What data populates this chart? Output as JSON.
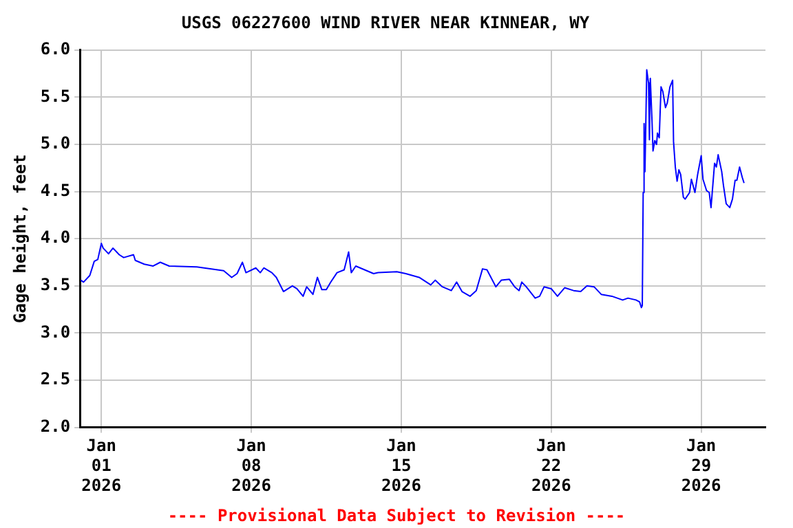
{
  "chart_data": {
    "type": "line",
    "title": "USGS 06227600 WIND RIVER NEAR KINNEAR, WY",
    "ylabel": "Gage height, feet",
    "annotations": [
      "---- Provisional Data Subject to Revision ----"
    ],
    "x": [
      "2025-12-31T01:00",
      "2025-12-31T04:00",
      "2025-12-31T11:00",
      "2025-12-31T16:00",
      "2025-12-31T20:00",
      "2026-01-01T00:00",
      "2026-01-01T02:00",
      "2026-01-01T08:00",
      "2026-01-01T13:00",
      "2026-01-01T20:00",
      "2026-01-02T01:00",
      "2026-01-02T12:00",
      "2026-01-02T14:00",
      "2026-01-03T00:00",
      "2026-01-03T10:00",
      "2026-01-03T18:00",
      "2026-01-04T04:00",
      "2026-01-05T11:00",
      "2026-01-06T02:00",
      "2026-01-06T17:00",
      "2026-01-07T02:00",
      "2026-01-07T08:00",
      "2026-01-07T14:00",
      "2026-01-07T18:00",
      "2026-01-08T05:00",
      "2026-01-08T10:00",
      "2026-01-08T14:00",
      "2026-01-08T23:00",
      "2026-01-09T04:00",
      "2026-01-09T12:00",
      "2026-01-09T22:00",
      "2026-01-10T03:00",
      "2026-01-10T10:00",
      "2026-01-10T14:00",
      "2026-01-10T21:00",
      "2026-01-11T02:00",
      "2026-01-11T07:00",
      "2026-01-11T12:00",
      "2026-01-11T17:00",
      "2026-01-12T00:00",
      "2026-01-12T08:00",
      "2026-01-12T13:00",
      "2026-01-12T16:00",
      "2026-01-12T21:00",
      "2026-01-13T07:00",
      "2026-01-13T17:00",
      "2026-01-13T22:00",
      "2026-01-14T19:00",
      "2026-01-15T05:00",
      "2026-01-15T20:00",
      "2026-01-16T09:00",
      "2026-01-16T14:00",
      "2026-01-16T22:00",
      "2026-01-17T08:00",
      "2026-01-17T14:00",
      "2026-01-17T20:00",
      "2026-01-18T05:00",
      "2026-01-18T12:00",
      "2026-01-18T19:00",
      "2026-01-19T00:00",
      "2026-01-19T10:00",
      "2026-01-19T16:00",
      "2026-01-20T01:00",
      "2026-01-20T07:00",
      "2026-01-20T12:00",
      "2026-01-20T15:00",
      "2026-01-20T20:00",
      "2026-01-21T06:00",
      "2026-01-21T11:00",
      "2026-01-21T16:00",
      "2026-01-22T00:00",
      "2026-01-22T07:00",
      "2026-01-22T15:00",
      "2026-01-23T01:00",
      "2026-01-23T09:00",
      "2026-01-23T16:00",
      "2026-01-24T00:00",
      "2026-01-24T08:00",
      "2026-01-24T20:00",
      "2026-01-25T08:00",
      "2026-01-25T14:00",
      "2026-01-25T23:00",
      "2026-01-26T03:00",
      "2026-01-26T05:00",
      "2026-01-26T06:00",
      "2026-01-26T07:00",
      "2026-01-26T08:00",
      "2026-01-26T09:00",
      "2026-01-26T11:00",
      "2026-01-26T13:00",
      "2026-01-26T14:00",
      "2026-01-26T15:00",
      "2026-01-26T17:00",
      "2026-01-26T18:00",
      "2026-01-26T20:00",
      "2026-01-26T22:00",
      "2026-01-26T23:00",
      "2026-01-27T01:00",
      "2026-01-27T03:00",
      "2026-01-27T05:00",
      "2026-01-27T08:00",
      "2026-01-27T10:00",
      "2026-01-27T13:00",
      "2026-01-27T16:00",
      "2026-01-27T17:00",
      "2026-01-27T19:00",
      "2026-01-27T21:00",
      "2026-01-27T23:00",
      "2026-01-28T01:00",
      "2026-01-28T04:00",
      "2026-01-28T06:00",
      "2026-01-28T11:00",
      "2026-01-28T13:00",
      "2026-01-28T17:00",
      "2026-01-28T20:00",
      "2026-01-29T00:00",
      "2026-01-29T02:00",
      "2026-01-29T06:00",
      "2026-01-29T09:00",
      "2026-01-29T11:00",
      "2026-01-29T15:00",
      "2026-01-29T17:00",
      "2026-01-29T19:00",
      "2026-01-29T23:00",
      "2026-01-30T01:00",
      "2026-01-30T04:00",
      "2026-01-30T08:00",
      "2026-01-30T11:00",
      "2026-01-30T14:00",
      "2026-01-30T16:00",
      "2026-01-30T19:00",
      "2026-01-30T22:00",
      "2026-01-31T00:00"
    ],
    "series": [
      {
        "color": "#0000ff",
        "values": [
          3.56,
          3.54,
          3.61,
          3.76,
          3.78,
          3.95,
          3.9,
          3.84,
          3.9,
          3.83,
          3.8,
          3.83,
          3.77,
          3.73,
          3.71,
          3.75,
          3.71,
          3.7,
          3.68,
          3.66,
          3.59,
          3.63,
          3.75,
          3.64,
          3.69,
          3.64,
          3.69,
          3.64,
          3.59,
          3.44,
          3.5,
          3.47,
          3.39,
          3.49,
          3.41,
          3.59,
          3.46,
          3.46,
          3.54,
          3.64,
          3.67,
          3.86,
          3.64,
          3.71,
          3.67,
          3.63,
          3.64,
          3.65,
          3.63,
          3.59,
          3.51,
          3.56,
          3.49,
          3.45,
          3.54,
          3.44,
          3.39,
          3.45,
          3.68,
          3.67,
          3.49,
          3.56,
          3.57,
          3.49,
          3.45,
          3.54,
          3.49,
          3.37,
          3.39,
          3.49,
          3.47,
          3.39,
          3.48,
          3.45,
          3.44,
          3.5,
          3.49,
          3.41,
          3.39,
          3.35,
          3.37,
          3.35,
          3.33,
          3.27,
          3.29,
          4.49,
          5.22,
          4.71,
          5.79,
          5.65,
          5.05,
          5.7,
          5.22,
          4.93,
          5.04,
          5.0,
          5.12,
          5.07,
          5.61,
          5.56,
          5.39,
          5.44,
          5.61,
          5.68,
          5.03,
          4.76,
          4.61,
          4.73,
          4.68,
          4.44,
          4.42,
          4.49,
          4.63,
          4.49,
          4.68,
          4.88,
          4.63,
          4.51,
          4.49,
          4.33,
          4.8,
          4.76,
          4.89,
          4.71,
          4.56,
          4.37,
          4.33,
          4.42,
          4.62,
          4.62,
          4.76,
          4.65,
          4.59
        ]
      }
    ],
    "xlim": [
      "2025-12-31",
      "2026-02-01"
    ],
    "xticks": [
      {
        "value": "2026-01-01",
        "label": "Jan\n01\n2026"
      },
      {
        "value": "2026-01-08",
        "label": "Jan\n08\n2026"
      },
      {
        "value": "2026-01-15",
        "label": "Jan\n15\n2026"
      },
      {
        "value": "2026-01-22",
        "label": "Jan\n22\n2026"
      },
      {
        "value": "2026-01-29",
        "label": "Jan\n29\n2026"
      }
    ],
    "ylim": [
      2,
      6
    ],
    "yticks": [
      {
        "value": 2,
        "label": "2.0"
      },
      {
        "value": 2.5,
        "label": "2.5"
      },
      {
        "value": 3,
        "label": "3.0"
      },
      {
        "value": 3.5,
        "label": "3.5"
      },
      {
        "value": 4,
        "label": "4.0"
      },
      {
        "value": 4.5,
        "label": "4.5"
      },
      {
        "value": 5,
        "label": "5.0"
      },
      {
        "value": 5.5,
        "label": "5.5"
      },
      {
        "value": 6,
        "label": "6.0"
      }
    ],
    "grid": true,
    "legend": false
  }
}
